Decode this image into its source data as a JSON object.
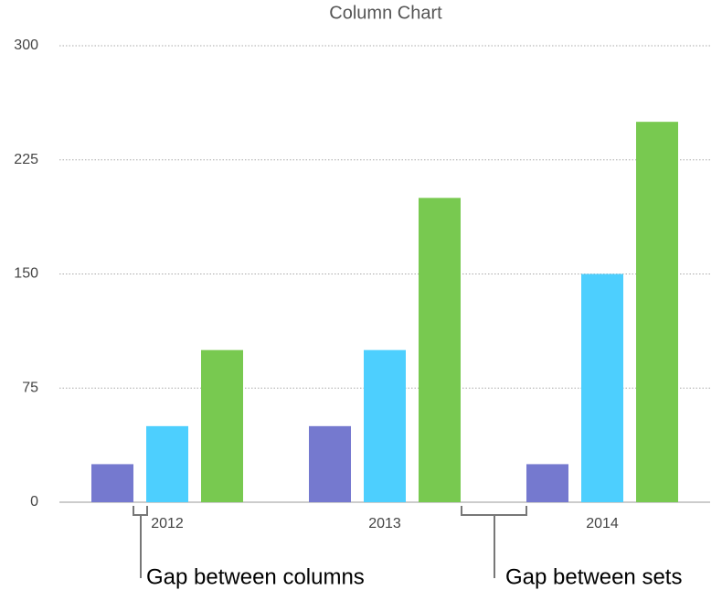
{
  "chart_data": {
    "type": "bar",
    "title": "Column Chart",
    "categories": [
      "2012",
      "2013",
      "2014"
    ],
    "series": [
      {
        "color": "#7579cf",
        "values": [
          25,
          50,
          25
        ]
      },
      {
        "color": "#4dcffe",
        "values": [
          50,
          100,
          150
        ]
      },
      {
        "color": "#78c950",
        "values": [
          100,
          200,
          250
        ]
      }
    ],
    "ylim": [
      0,
      300
    ],
    "yticks": [
      0,
      75,
      150,
      225,
      300
    ],
    "grid": true,
    "annotations": [
      "Gap between columns",
      "Gap between sets"
    ]
  }
}
